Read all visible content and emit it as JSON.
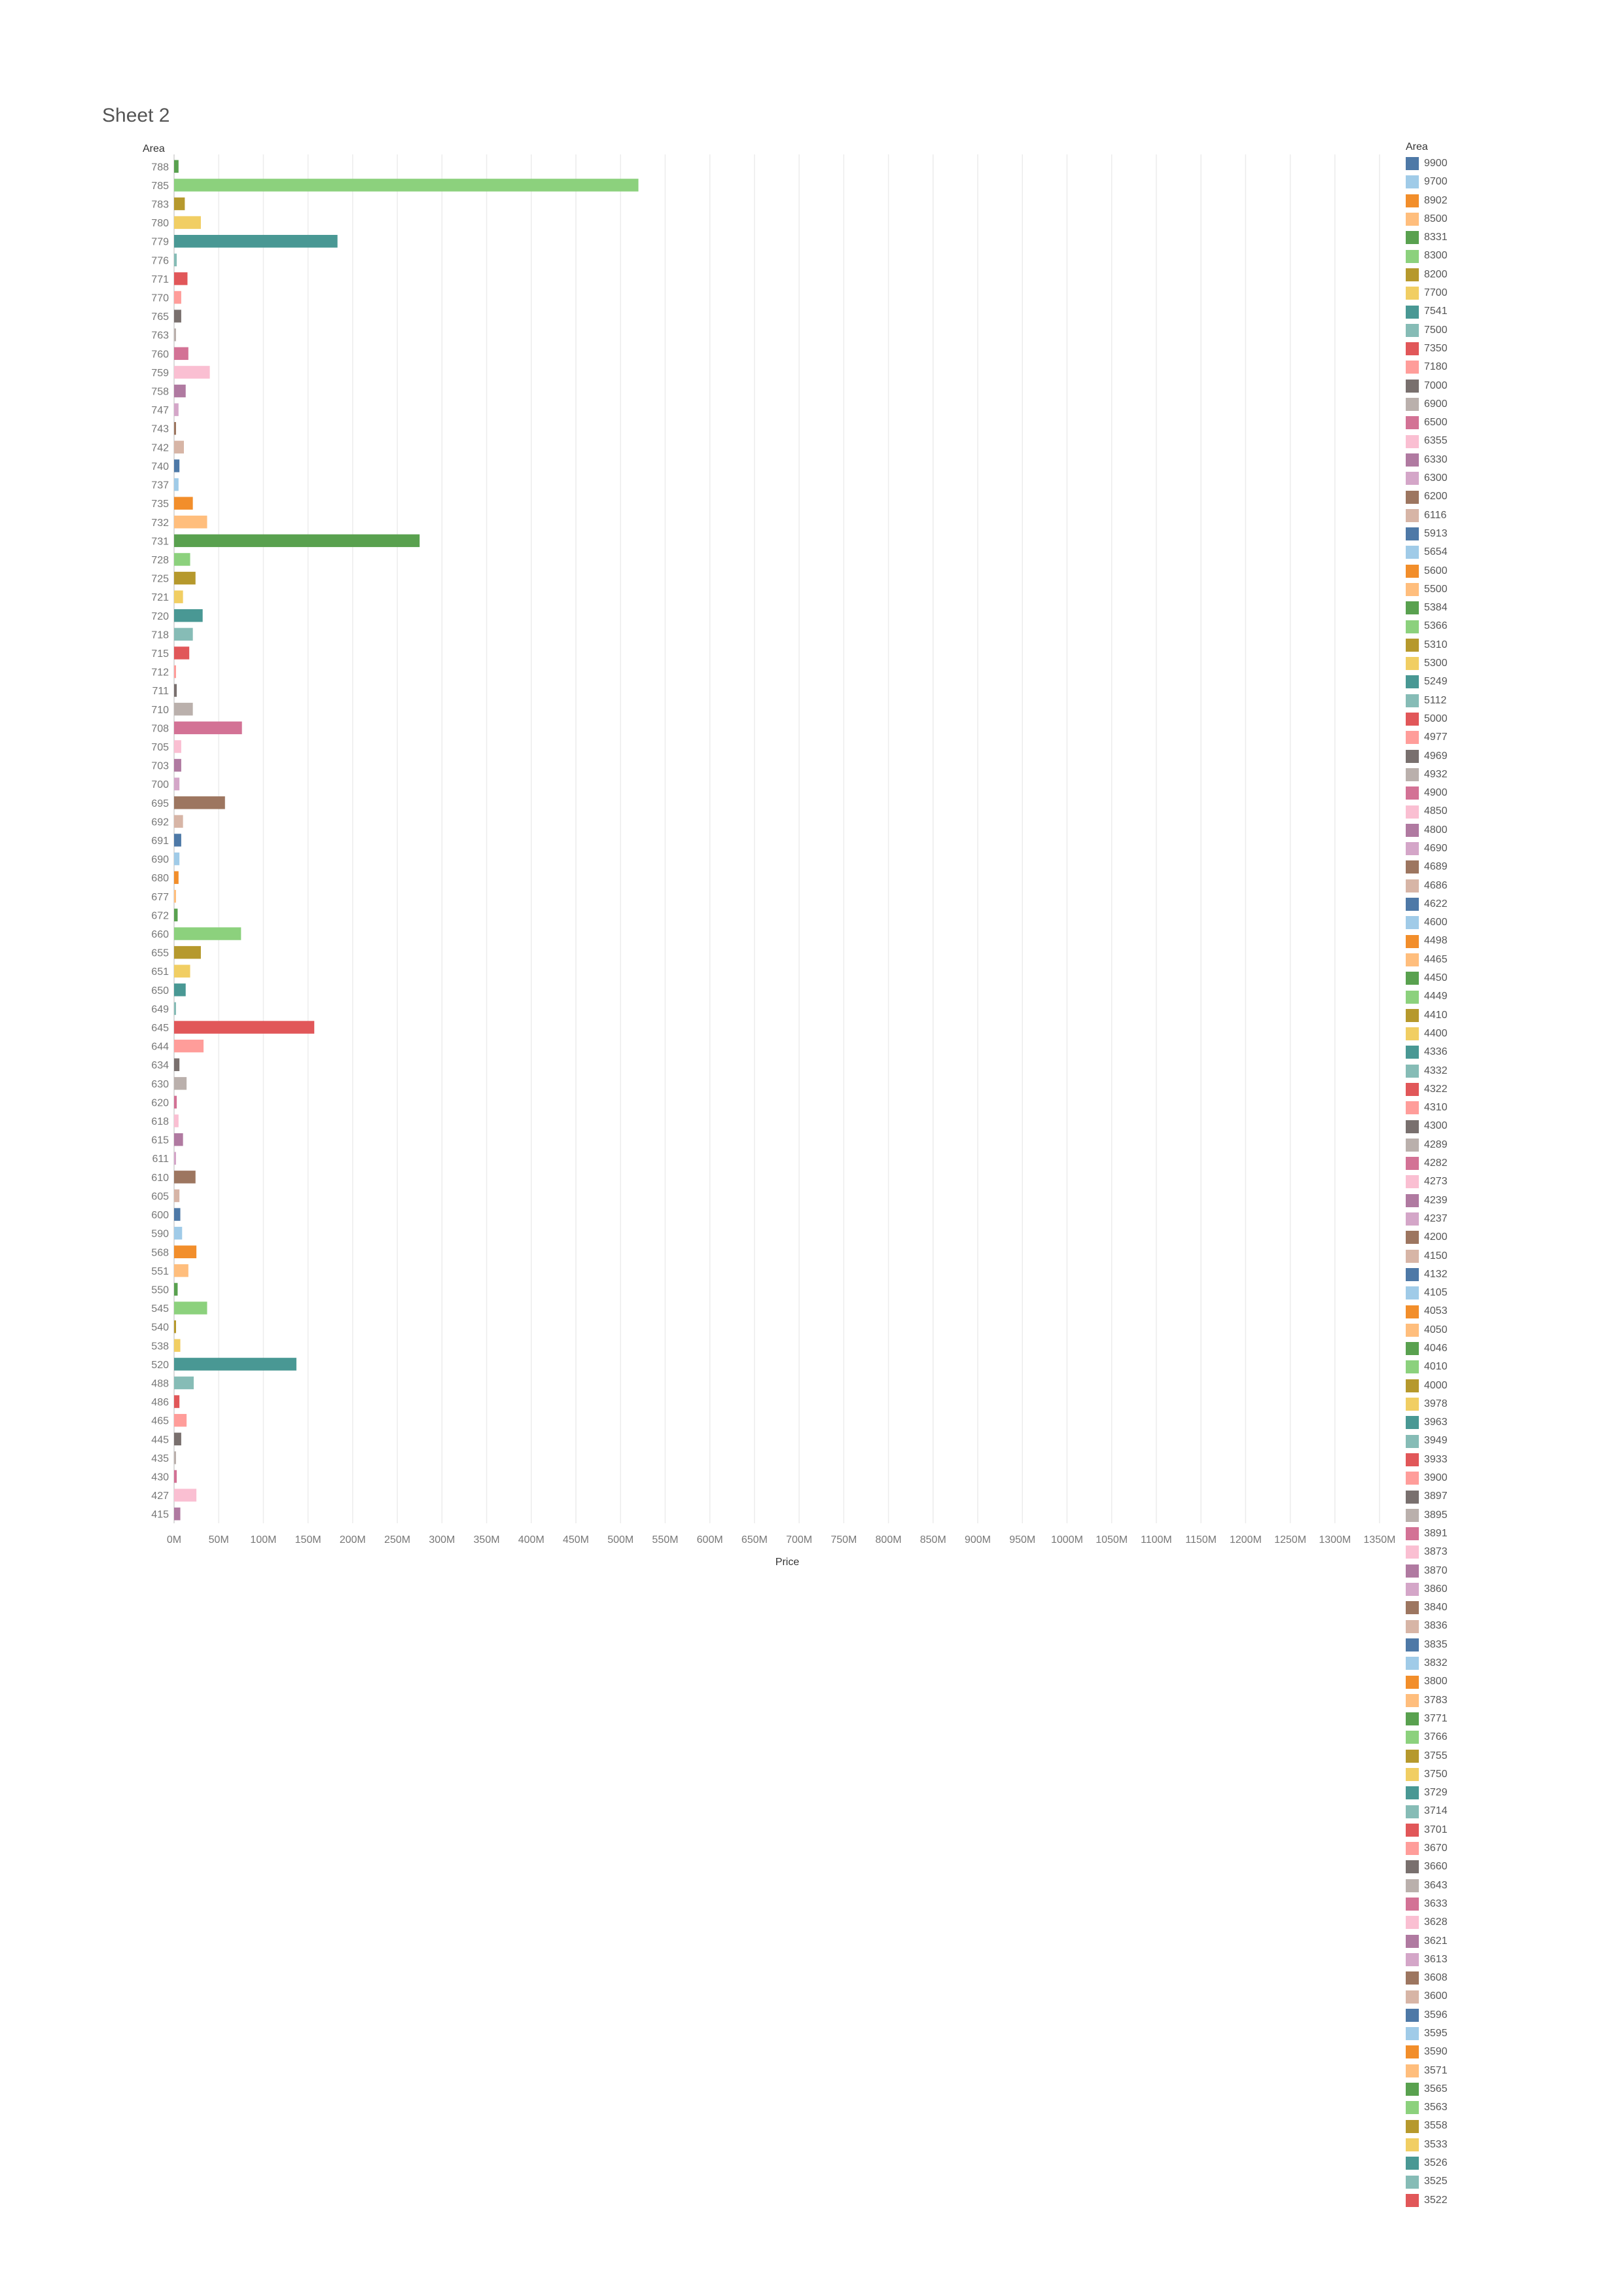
{
  "sheet": {
    "title": "Sheet 2"
  },
  "chart_data": {
    "type": "bar",
    "orientation": "horizontal",
    "grid": true,
    "legend_position": "right",
    "y_header": "Area",
    "xlabel": "Price",
    "xlim": [
      0,
      1350000000
    ],
    "x_ticks": [
      "0M",
      "50M",
      "100M",
      "150M",
      "200M",
      "250M",
      "300M",
      "350M",
      "400M",
      "450M",
      "500M",
      "550M",
      "600M",
      "650M",
      "700M",
      "750M",
      "800M",
      "850M",
      "900M",
      "950M",
      "1000M",
      "1050M",
      "1100M",
      "1150M",
      "1200M",
      "1250M",
      "1300M",
      "1350M"
    ],
    "categories": [
      "788",
      "785",
      "783",
      "780",
      "779",
      "776",
      "771",
      "770",
      "765",
      "763",
      "760",
      "759",
      "758",
      "747",
      "743",
      "742",
      "740",
      "737",
      "735",
      "732",
      "731",
      "728",
      "725",
      "721",
      "720",
      "718",
      "715",
      "712",
      "711",
      "710",
      "708",
      "705",
      "703",
      "700",
      "695",
      "692",
      "691",
      "690",
      "680",
      "677",
      "672",
      "660",
      "655",
      "651",
      "650",
      "649",
      "645",
      "644",
      "634",
      "630",
      "620",
      "618",
      "615",
      "611",
      "610",
      "605",
      "600",
      "590",
      "568",
      "551",
      "550",
      "545",
      "540",
      "538",
      "520",
      "488",
      "486",
      "465",
      "445",
      "435",
      "430",
      "427",
      "415"
    ],
    "values": [
      5000000,
      520000000,
      12000000,
      30000000,
      183000000,
      3000000,
      15000000,
      8000000,
      8000000,
      2000000,
      16000000,
      40000000,
      13000000,
      5000000,
      2000000,
      11000000,
      6000000,
      5000000,
      21000000,
      37000000,
      275000000,
      18000000,
      24000000,
      10000000,
      32000000,
      21000000,
      17000000,
      2000000,
      3000000,
      21000000,
      76000000,
      8000000,
      8000000,
      6000000,
      57000000,
      10000000,
      8000000,
      6000000,
      5000000,
      2000000,
      4000000,
      75000000,
      30000000,
      18000000,
      13000000,
      2000000,
      157000000,
      33000000,
      6000000,
      14000000,
      3000000,
      5000000,
      10000000,
      2000000,
      24000000,
      6000000,
      7000000,
      9000000,
      25000000,
      16000000,
      4000000,
      37000000,
      2000000,
      7000000,
      137000000,
      22000000,
      6000000,
      14000000,
      8000000,
      2000000,
      3000000,
      25000000,
      7000000
    ],
    "bar_colors": [
      "#59A14F",
      "#8CD17D",
      "#B6992D",
      "#F1CE63",
      "#499894",
      "#86BCB6",
      "#E15759",
      "#FF9D9A",
      "#79706E",
      "#BAB0AC",
      "#D37295",
      "#FABFD2",
      "#B07AA1",
      "#D4A6C8",
      "#9D7660",
      "#D7B5A6",
      "#4E79A7",
      "#A0CBE8",
      "#F28E2B",
      "#FFBE7D",
      "#59A14F",
      "#8CD17D",
      "#B6992D",
      "#F1CE63",
      "#499894",
      "#86BCB6",
      "#E15759",
      "#FF9D9A",
      "#79706E",
      "#BAB0AC",
      "#D37295",
      "#FABFD2",
      "#B07AA1",
      "#D4A6C8",
      "#9D7660",
      "#D7B5A6",
      "#4E79A7",
      "#A0CBE8",
      "#F28E2B",
      "#FFBE7D",
      "#59A14F",
      "#8CD17D",
      "#B6992D",
      "#F1CE63",
      "#499894",
      "#86BCB6",
      "#E15759",
      "#FF9D9A",
      "#79706E",
      "#BAB0AC",
      "#D37295",
      "#FABFD2",
      "#B07AA1",
      "#D4A6C8",
      "#9D7660",
      "#D7B5A6",
      "#4E79A7",
      "#A0CBE8",
      "#F28E2B",
      "#FFBE7D",
      "#59A14F",
      "#8CD17D",
      "#B6992D",
      "#F1CE63",
      "#499894",
      "#86BCB6",
      "#E15759",
      "#FF9D9A",
      "#79706E",
      "#BAB0AC",
      "#D37295",
      "#FABFD2",
      "#B07AA1"
    ],
    "legend": {
      "title": "Area",
      "items": [
        {
          "label": "9900",
          "color": "#4E79A7"
        },
        {
          "label": "9700",
          "color": "#A0CBE8"
        },
        {
          "label": "8902",
          "color": "#F28E2B"
        },
        {
          "label": "8500",
          "color": "#FFBE7D"
        },
        {
          "label": "8331",
          "color": "#59A14F"
        },
        {
          "label": "8300",
          "color": "#8CD17D"
        },
        {
          "label": "8200",
          "color": "#B6992D"
        },
        {
          "label": "7700",
          "color": "#F1CE63"
        },
        {
          "label": "7541",
          "color": "#499894"
        },
        {
          "label": "7500",
          "color": "#86BCB6"
        },
        {
          "label": "7350",
          "color": "#E15759"
        },
        {
          "label": "7180",
          "color": "#FF9D9A"
        },
        {
          "label": "7000",
          "color": "#79706E"
        },
        {
          "label": "6900",
          "color": "#BAB0AC"
        },
        {
          "label": "6500",
          "color": "#D37295"
        },
        {
          "label": "6355",
          "color": "#FABFD2"
        },
        {
          "label": "6330",
          "color": "#B07AA1"
        },
        {
          "label": "6300",
          "color": "#D4A6C8"
        },
        {
          "label": "6200",
          "color": "#9D7660"
        },
        {
          "label": "6116",
          "color": "#D7B5A6"
        },
        {
          "label": "5913",
          "color": "#4E79A7"
        },
        {
          "label": "5654",
          "color": "#A0CBE8"
        },
        {
          "label": "5600",
          "color": "#F28E2B"
        },
        {
          "label": "5500",
          "color": "#FFBE7D"
        },
        {
          "label": "5384",
          "color": "#59A14F"
        },
        {
          "label": "5366",
          "color": "#8CD17D"
        },
        {
          "label": "5310",
          "color": "#B6992D"
        },
        {
          "label": "5300",
          "color": "#F1CE63"
        },
        {
          "label": "5249",
          "color": "#499894"
        },
        {
          "label": "5112",
          "color": "#86BCB6"
        },
        {
          "label": "5000",
          "color": "#E15759"
        },
        {
          "label": "4977",
          "color": "#FF9D9A"
        },
        {
          "label": "4969",
          "color": "#79706E"
        },
        {
          "label": "4932",
          "color": "#BAB0AC"
        },
        {
          "label": "4900",
          "color": "#D37295"
        },
        {
          "label": "4850",
          "color": "#FABFD2"
        },
        {
          "label": "4800",
          "color": "#B07AA1"
        },
        {
          "label": "4690",
          "color": "#D4A6C8"
        },
        {
          "label": "4689",
          "color": "#9D7660"
        },
        {
          "label": "4686",
          "color": "#D7B5A6"
        },
        {
          "label": "4622",
          "color": "#4E79A7"
        },
        {
          "label": "4600",
          "color": "#A0CBE8"
        },
        {
          "label": "4498",
          "color": "#F28E2B"
        },
        {
          "label": "4465",
          "color": "#FFBE7D"
        },
        {
          "label": "4450",
          "color": "#59A14F"
        },
        {
          "label": "4449",
          "color": "#8CD17D"
        },
        {
          "label": "4410",
          "color": "#B6992D"
        },
        {
          "label": "4400",
          "color": "#F1CE63"
        },
        {
          "label": "4336",
          "color": "#499894"
        },
        {
          "label": "4332",
          "color": "#86BCB6"
        },
        {
          "label": "4322",
          "color": "#E15759"
        },
        {
          "label": "4310",
          "color": "#FF9D9A"
        },
        {
          "label": "4300",
          "color": "#79706E"
        },
        {
          "label": "4289",
          "color": "#BAB0AC"
        },
        {
          "label": "4282",
          "color": "#D37295"
        },
        {
          "label": "4273",
          "color": "#FABFD2"
        },
        {
          "label": "4239",
          "color": "#B07AA1"
        },
        {
          "label": "4237",
          "color": "#D4A6C8"
        },
        {
          "label": "4200",
          "color": "#9D7660"
        },
        {
          "label": "4150",
          "color": "#D7B5A6"
        },
        {
          "label": "4132",
          "color": "#4E79A7"
        },
        {
          "label": "4105",
          "color": "#A0CBE8"
        },
        {
          "label": "4053",
          "color": "#F28E2B"
        },
        {
          "label": "4050",
          "color": "#FFBE7D"
        },
        {
          "label": "4046",
          "color": "#59A14F"
        },
        {
          "label": "4010",
          "color": "#8CD17D"
        },
        {
          "label": "4000",
          "color": "#B6992D"
        },
        {
          "label": "3978",
          "color": "#F1CE63"
        },
        {
          "label": "3963",
          "color": "#499894"
        },
        {
          "label": "3949",
          "color": "#86BCB6"
        },
        {
          "label": "3933",
          "color": "#E15759"
        },
        {
          "label": "3900",
          "color": "#FF9D9A"
        },
        {
          "label": "3897",
          "color": "#79706E"
        },
        {
          "label": "3895",
          "color": "#BAB0AC"
        },
        {
          "label": "3891",
          "color": "#D37295"
        },
        {
          "label": "3873",
          "color": "#FABFD2"
        },
        {
          "label": "3870",
          "color": "#B07AA1"
        },
        {
          "label": "3860",
          "color": "#D4A6C8"
        },
        {
          "label": "3840",
          "color": "#9D7660"
        },
        {
          "label": "3836",
          "color": "#D7B5A6"
        },
        {
          "label": "3835",
          "color": "#4E79A7"
        },
        {
          "label": "3832",
          "color": "#A0CBE8"
        },
        {
          "label": "3800",
          "color": "#F28E2B"
        },
        {
          "label": "3783",
          "color": "#FFBE7D"
        },
        {
          "label": "3771",
          "color": "#59A14F"
        },
        {
          "label": "3766",
          "color": "#8CD17D"
        },
        {
          "label": "3755",
          "color": "#B6992D"
        },
        {
          "label": "3750",
          "color": "#F1CE63"
        },
        {
          "label": "3729",
          "color": "#499894"
        },
        {
          "label": "3714",
          "color": "#86BCB6"
        },
        {
          "label": "3701",
          "color": "#E15759"
        },
        {
          "label": "3670",
          "color": "#FF9D9A"
        },
        {
          "label": "3660",
          "color": "#79706E"
        },
        {
          "label": "3643",
          "color": "#BAB0AC"
        },
        {
          "label": "3633",
          "color": "#D37295"
        },
        {
          "label": "3628",
          "color": "#FABFD2"
        },
        {
          "label": "3621",
          "color": "#B07AA1"
        },
        {
          "label": "3613",
          "color": "#D4A6C8"
        },
        {
          "label": "3608",
          "color": "#9D7660"
        },
        {
          "label": "3600",
          "color": "#D7B5A6"
        },
        {
          "label": "3596",
          "color": "#4E79A7"
        },
        {
          "label": "3595",
          "color": "#A0CBE8"
        },
        {
          "label": "3590",
          "color": "#F28E2B"
        },
        {
          "label": "3571",
          "color": "#FFBE7D"
        },
        {
          "label": "3565",
          "color": "#59A14F"
        },
        {
          "label": "3563",
          "color": "#8CD17D"
        },
        {
          "label": "3558",
          "color": "#B6992D"
        },
        {
          "label": "3533",
          "color": "#F1CE63"
        },
        {
          "label": "3526",
          "color": "#499894"
        },
        {
          "label": "3525",
          "color": "#86BCB6"
        },
        {
          "label": "3522",
          "color": "#E15759"
        }
      ]
    }
  }
}
